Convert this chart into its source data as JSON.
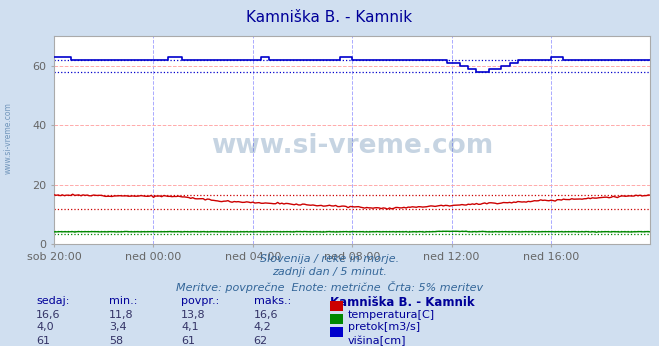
{
  "title": "Kamniška B. - Kamnik",
  "title_color": "#000099",
  "bg_color": "#d0dff0",
  "plot_bg_color": "#ffffff",
  "grid_color_h": "#ffaaaa",
  "grid_color_v": "#aaaaff",
  "xlim": [
    0,
    288
  ],
  "ylim": [
    0,
    70
  ],
  "yticks": [
    0,
    20,
    40,
    60
  ],
  "xtick_labels": [
    "sob 20:00",
    "ned 00:00",
    "ned 04:00",
    "ned 08:00",
    "ned 12:00",
    "ned 16:00"
  ],
  "xtick_positions": [
    0,
    48,
    96,
    144,
    192,
    240
  ],
  "temp_color": "#cc0000",
  "flow_color": "#008800",
  "height_color": "#0000cc",
  "temp_min_line": 11.8,
  "temp_max_line": 16.6,
  "flow_min_line": 3.4,
  "flow_max_line": 4.2,
  "height_min_line": 58,
  "height_max_line": 62,
  "watermark": "www.si-vreme.com",
  "watermark_color": "#336699",
  "footer_line1": "Slovenija / reke in morje.",
  "footer_line2": "zadnji dan / 5 minut.",
  "footer_line3": "Meritve: povprečne  Enote: metrične  Črta: 5% meritev",
  "footer_color": "#336699",
  "table_header": [
    "sedaj:",
    "min.:",
    "povpr.:",
    "maks.:",
    "Kamniška B. - Kamnik"
  ],
  "table_row1": [
    "16,6",
    "11,8",
    "13,8",
    "16,6",
    "temperatura[C]"
  ],
  "table_row2": [
    "4,0",
    "3,4",
    "4,1",
    "4,2",
    "pretok[m3/s]"
  ],
  "table_row3": [
    "61",
    "58",
    "61",
    "62",
    "višina[cm]"
  ],
  "table_color": "#000099",
  "legend_colors": [
    "#cc0000",
    "#008800",
    "#0000cc"
  ],
  "left_label_color": "#336699",
  "tick_color": "#666666"
}
